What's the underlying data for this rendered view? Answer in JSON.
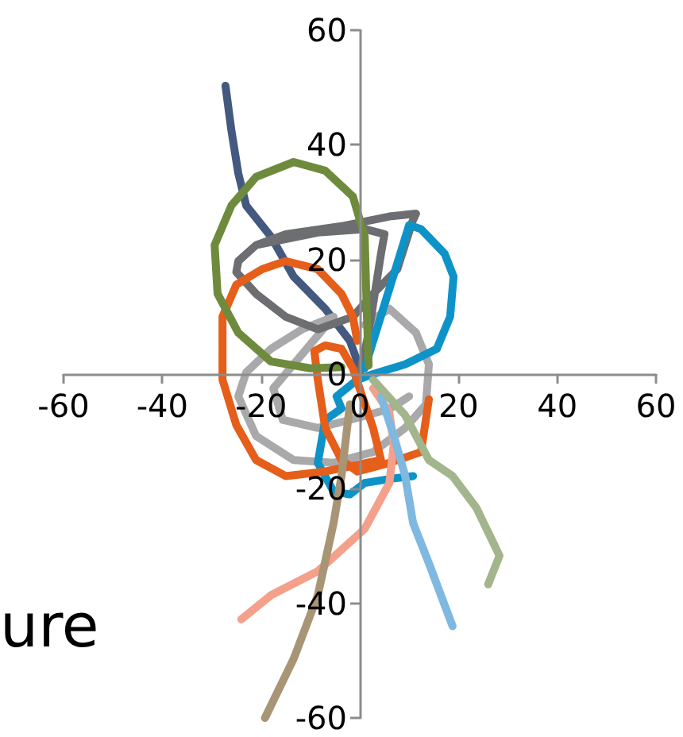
{
  "chart_data": {
    "type": "line",
    "xlim": [
      -60,
      60
    ],
    "xticks": [
      -60,
      -40,
      -20,
      0,
      20,
      40,
      60
    ],
    "ylim": [
      -60,
      60
    ],
    "yticks": [
      -60,
      -40,
      -20,
      0,
      20,
      40,
      60
    ],
    "grid": false,
    "marker": "none",
    "line_style": "solid",
    "annotations": [
      "ure"
    ],
    "series": [
      {
        "color": "#44597f",
        "x": [
          -27.2,
          -26,
          -24.6,
          -23,
          -18,
          -13.4,
          -7,
          -2,
          0
        ],
        "values": [
          50.3,
          42.5,
          35,
          29.4,
          24,
          17,
          11.4,
          5.8,
          1
        ]
      },
      {
        "color": "#6e8b3d",
        "x": [
          1.8,
          1.4,
          1,
          -1.4,
          -7,
          -13.4,
          -21,
          -26,
          -29.4,
          -28.8,
          -24.6,
          -18,
          -10,
          -3.7
        ],
        "values": [
          1.5,
          11.4,
          24,
          31,
          35.5,
          37,
          34.4,
          29.4,
          22.5,
          14,
          7.2,
          2.2,
          1,
          1.2
        ]
      },
      {
        "color": "#a9a9ab",
        "x": [
          1,
          6,
          11.4,
          14,
          13.4,
          9.2,
          2.7,
          -5.3,
          -13.4,
          -21,
          -24.6,
          -23,
          -18,
          -11.7,
          -5.3,
          -13.4,
          -17.5,
          -15.6,
          -8.5,
          -2,
          6,
          10
        ],
        "values": [
          8.6,
          11.4,
          7.2,
          1.7,
          -5.3,
          -9.4,
          -13.6,
          -15.5,
          -15,
          -10.8,
          -3.9,
          0.3,
          4.4,
          7.8,
          10,
          1.7,
          -2.5,
          -8,
          -9.4,
          -8,
          -6.1,
          -3.9
        ]
      },
      {
        "color": "#6d6e71",
        "x": [
          0,
          1.8,
          4.3,
          5,
          1,
          -8.5,
          -21,
          -24.6,
          -25,
          -21,
          -15,
          -8.5,
          -1.4,
          2.7,
          7.6,
          10.7,
          11.4,
          6,
          -3.7,
          -15,
          -21
        ],
        "values": [
          0,
          7.2,
          21,
          24.4,
          25.3,
          24.7,
          22.5,
          19.7,
          17.8,
          14,
          10,
          7.8,
          10,
          14,
          18.3,
          26.7,
          28,
          27.5,
          25.8,
          24.4,
          22.5
        ]
      },
      {
        "color": "#0e93c9",
        "x": [
          1,
          10,
          12.4,
          17.2,
          19,
          18.3,
          15.6,
          9.2,
          2.7,
          -0.5,
          -4.7,
          -3.7,
          -7,
          -8.5,
          -5.3,
          -2,
          1,
          6,
          10.8
        ],
        "values": [
          1,
          26,
          25.3,
          21,
          17,
          10,
          4.4,
          1.7,
          0,
          -1,
          -3.9,
          -6,
          -8,
          -15.5,
          -20.5,
          -21,
          -19,
          -18.3,
          -17.8
        ]
      },
      {
        "color": "#e55e1a",
        "x": [
          14,
          12.4,
          6,
          -0.5,
          -3.7,
          -7,
          -8.5,
          -9.2,
          -7,
          -3.7,
          -1.4,
          0.5,
          2.7,
          4.3,
          -7,
          -15,
          -21,
          -25,
          -27.8,
          -27.8,
          -25,
          -19.8,
          -15,
          -8.5,
          -3.7,
          -1.4,
          -0.5
        ],
        "values": [
          -4.4,
          -13.6,
          -15.5,
          -17,
          -15,
          -9.4,
          -1,
          4,
          5,
          4.4,
          1,
          -3.9,
          -9.4,
          -15,
          -17,
          -17.8,
          -15,
          -8.9,
          -1,
          10,
          15.6,
          18.3,
          19.7,
          18.3,
          14,
          10,
          5.8
        ]
      },
      {
        "color": "#f4a08a",
        "x": [
          2.7,
          6,
          6.9,
          6,
          1,
          -8.5,
          -18,
          -24
        ],
        "values": [
          -2.5,
          -6.7,
          -12.2,
          -19,
          -27,
          -34.4,
          -38.6,
          -42.8
        ]
      },
      {
        "color": "#a89575",
        "x": [
          -2,
          -3.7,
          -5.3,
          -8.5,
          -13.4,
          -19.2
        ],
        "values": [
          -5.3,
          -17.8,
          -26,
          -38.6,
          -49.7,
          -60
        ]
      },
      {
        "color": "#7fb8e0",
        "x": [
          4.3,
          6.9,
          9.2,
          10.8,
          14,
          18.8
        ],
        "values": [
          -3.9,
          -10.8,
          -17.8,
          -26,
          -33,
          -44
        ]
      },
      {
        "color": "#a3b58c",
        "x": [
          2.7,
          9.2,
          14,
          18.8,
          23.6,
          28.3,
          26
        ],
        "values": [
          -1,
          -7.2,
          -15,
          -17.8,
          -23.3,
          -31.7,
          -36.7
        ]
      }
    ]
  }
}
